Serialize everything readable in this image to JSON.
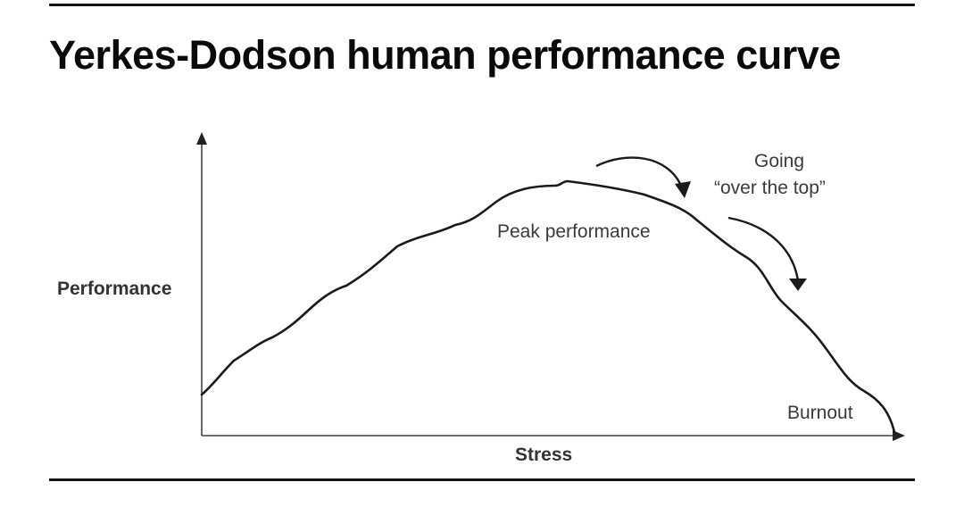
{
  "title": "Yerkes-Dodson human performance curve",
  "diagram": {
    "y_axis_label": "Performance",
    "x_axis_label": "Stress",
    "peak_label": "Peak performance",
    "going_label_line1": "Going",
    "going_label_line2": "“over the top”",
    "burnout_label": "Burnout"
  },
  "colors": {
    "ink": "#111111",
    "label": "#333333"
  }
}
